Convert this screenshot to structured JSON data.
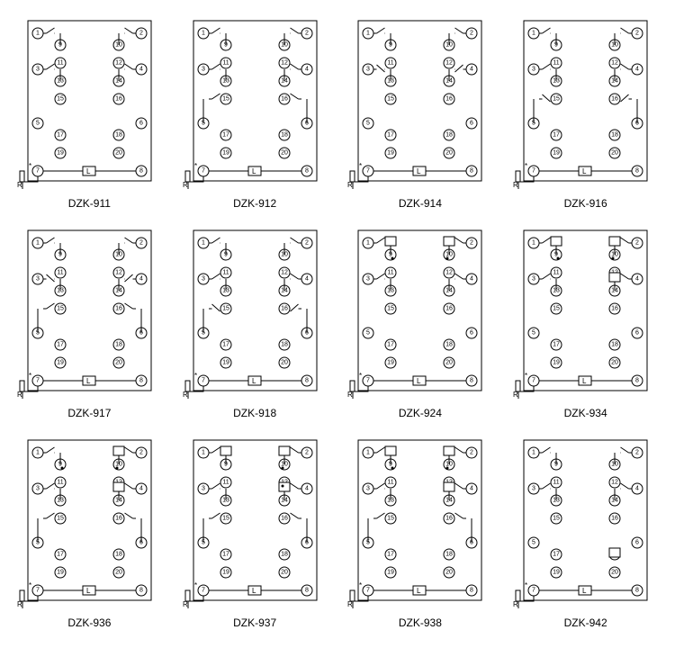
{
  "layout": {
    "cols": 4,
    "rows": 3,
    "diagram_w": 165,
    "diagram_h": 200
  },
  "pins": {
    "left_outer": [
      1,
      3,
      5,
      7
    ],
    "right_outer": [
      2,
      4,
      6,
      8
    ],
    "left_inner": [
      9,
      11,
      13,
      15,
      17,
      19
    ],
    "right_inner": [
      10,
      12,
      14,
      16,
      18,
      20
    ],
    "outer_x_l": 25,
    "outer_x_r": 140,
    "inner_x_l": 50,
    "inner_x_r": 115,
    "outer_y": [
      22,
      62,
      122,
      175
    ],
    "inner_y": [
      35,
      55,
      75,
      95,
      135,
      155
    ],
    "radius": 6
  },
  "colors": {
    "stroke": "#000000",
    "fill_bg": "#ffffff"
  },
  "models": [
    {
      "name": "DZK-911",
      "contacts": [
        "NO-1L",
        "NO-1R",
        "NO-2L",
        "NO-2R"
      ],
      "boxes": [],
      "dots": []
    },
    {
      "name": "DZK-912",
      "contacts": [
        "NO-1L",
        "NO-1R",
        "NO-2L",
        "NO-2R",
        "NO-3L",
        "NO-3R"
      ],
      "boxes": [],
      "dots": []
    },
    {
      "name": "DZK-914",
      "contacts": [
        "NO-1L",
        "NO-1R",
        "NC-2L",
        "NC-2R"
      ],
      "boxes": [],
      "dots": []
    },
    {
      "name": "DZK-916",
      "contacts": [
        "NO-1L",
        "NO-1R",
        "NO-2L",
        "NO-2R",
        "NC-3L",
        "NC-3R"
      ],
      "boxes": [],
      "dots": []
    },
    {
      "name": "DZK-917",
      "contacts": [
        "NO-1L",
        "NO-1R",
        "NC-2L",
        "NC-2R",
        "NO-3L",
        "NO-3R"
      ],
      "boxes": [],
      "dots": []
    },
    {
      "name": "DZK-918",
      "contacts": [
        "NO-1L",
        "NO-1R",
        "NO-2L",
        "NO-2R",
        "NC-3L",
        "NC-3R"
      ],
      "boxes": [],
      "dots": []
    },
    {
      "name": "DZK-924",
      "contacts": [
        "NO-1L",
        "NO-1R",
        "NO-2L",
        "NO-2R"
      ],
      "boxes": [
        "1L",
        "1R"
      ],
      "dots": [
        "1L",
        "1R"
      ]
    },
    {
      "name": "DZK-934",
      "contacts": [
        "NO-1L",
        "NO-1R",
        "NO-2L",
        "NO-2R"
      ],
      "boxes": [
        "1L",
        "1R",
        "2R"
      ],
      "dots": [
        "1L",
        "1R"
      ]
    },
    {
      "name": "DZK-936",
      "contacts": [
        "NO-1L",
        "NO-1R",
        "NO-2L",
        "NO-2R",
        "NO-3L",
        "NO-3R"
      ],
      "boxes": [
        "1R",
        "2R"
      ],
      "dots": [
        "1L",
        "1R"
      ]
    },
    {
      "name": "DZK-937",
      "contacts": [
        "NO-1L",
        "NO-1R",
        "NO-2L",
        "NO-2R",
        "NO-3L",
        "NO-3R"
      ],
      "boxes": [
        "1L",
        "1R",
        "2R"
      ],
      "dots": [
        "1R",
        "2R"
      ]
    },
    {
      "name": "DZK-938",
      "contacts": [
        "NO-1L",
        "NO-1R",
        "NO-2L",
        "NO-2R",
        "NO-3L",
        "NO-3R"
      ],
      "boxes": [
        "1L",
        "1R",
        "2R"
      ],
      "dots": [
        "1L",
        "1R"
      ]
    },
    {
      "name": "DZK-942",
      "contacts": [
        "NO-1L",
        "NO-1R",
        "NO-2L",
        "NO-2R"
      ],
      "boxes": [
        "5R"
      ],
      "dots": []
    }
  ],
  "resistor_label": "R",
  "coil_label": "L"
}
